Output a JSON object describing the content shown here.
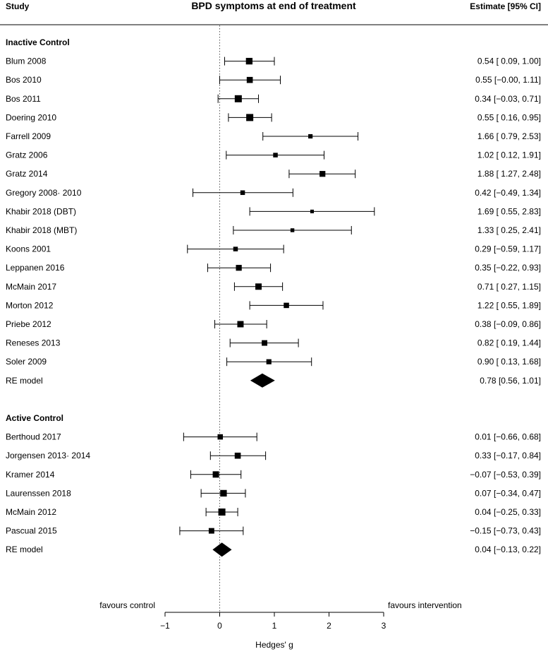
{
  "chart_data": {
    "type": "forest",
    "title": "BPD symptoms at end of treatment",
    "header_left": "Study",
    "header_right": "Estimate [95% CI]",
    "xlabel": "Hedges' g",
    "xlim": [
      -1,
      3
    ],
    "xticks": [
      -1,
      0,
      1,
      2,
      3
    ],
    "xtick_labels": [
      "−1",
      "0",
      "1",
      "2",
      "3"
    ],
    "left_annotation": "favours control",
    "right_annotation": "favours intervention",
    "groups": [
      {
        "name": "Inactive Control",
        "studies": [
          {
            "label": "Blum 2008",
            "est": 0.54,
            "lo": 0.09,
            "hi": 1.0,
            "weight": 0.9,
            "text": "0.54 [ 0.09, 1.00]"
          },
          {
            "label": "Bos 2010",
            "est": 0.55,
            "lo": 0.0,
            "hi": 1.11,
            "weight": 0.8,
            "text": "0.55 [−0.00, 1.11]"
          },
          {
            "label": "Bos 2011",
            "est": 0.34,
            "lo": -0.03,
            "hi": 0.71,
            "weight": 1.0,
            "text": "0.34 [−0.03, 0.71]"
          },
          {
            "label": "Doering 2010",
            "est": 0.55,
            "lo": 0.16,
            "hi": 0.95,
            "weight": 1.0,
            "text": "0.55 [ 0.16, 0.95]"
          },
          {
            "label": "Farrell 2009",
            "est": 1.66,
            "lo": 0.79,
            "hi": 2.53,
            "weight": 0.45,
            "text": "1.66 [ 0.79, 2.53]"
          },
          {
            "label": "Gratz 2006",
            "est": 1.02,
            "lo": 0.12,
            "hi": 1.91,
            "weight": 0.5,
            "text": "1.02 [ 0.12, 1.91]"
          },
          {
            "label": "Gratz 2014",
            "est": 1.88,
            "lo": 1.27,
            "hi": 2.48,
            "weight": 0.75,
            "text": "1.88 [ 1.27, 2.48]"
          },
          {
            "label": "Gregory 2008· 2010",
            "est": 0.42,
            "lo": -0.49,
            "hi": 1.34,
            "weight": 0.5,
            "text": "0.42 [−0.49, 1.34]"
          },
          {
            "label": "Khabir 2018 (DBT)",
            "est": 1.69,
            "lo": 0.55,
            "hi": 2.83,
            "weight": 0.3,
            "text": "1.69 [ 0.55, 2.83]"
          },
          {
            "label": "Khabir 2018 (MBT)",
            "est": 1.33,
            "lo": 0.25,
            "hi": 2.41,
            "weight": 0.35,
            "text": "1.33 [ 0.25, 2.41]"
          },
          {
            "label": "Koons 2001",
            "est": 0.29,
            "lo": -0.59,
            "hi": 1.17,
            "weight": 0.5,
            "text": "0.29 [−0.59, 1.17]"
          },
          {
            "label": "Leppanen 2016",
            "est": 0.35,
            "lo": -0.22,
            "hi": 0.93,
            "weight": 0.75,
            "text": "0.35 [−0.22, 0.93]"
          },
          {
            "label": "McMain 2017",
            "est": 0.71,
            "lo": 0.27,
            "hi": 1.15,
            "weight": 0.85,
            "text": "0.71 [ 0.27, 1.15]"
          },
          {
            "label": "Morton 2012",
            "est": 1.22,
            "lo": 0.55,
            "hi": 1.89,
            "weight": 0.65,
            "text": "1.22 [ 0.55, 1.89]"
          },
          {
            "label": "Priebe 2012",
            "est": 0.38,
            "lo": -0.09,
            "hi": 0.86,
            "weight": 0.85,
            "text": "0.38 [−0.09, 0.86]"
          },
          {
            "label": "Reneses 2013",
            "est": 0.82,
            "lo": 0.19,
            "hi": 1.44,
            "weight": 0.7,
            "text": "0.82 [ 0.19, 1.44]"
          },
          {
            "label": "Soler 2009",
            "est": 0.9,
            "lo": 0.13,
            "hi": 1.68,
            "weight": 0.6,
            "text": "0.90 [ 0.13, 1.68]"
          }
        ],
        "summary": {
          "label": "RE model",
          "est": 0.78,
          "lo": 0.56,
          "hi": 1.01,
          "text": "0.78 [0.56, 1.01]"
        }
      },
      {
        "name": "Active Control",
        "studies": [
          {
            "label": "Berthoud 2017",
            "est": 0.01,
            "lo": -0.66,
            "hi": 0.68,
            "weight": 0.65,
            "text": "0.01 [−0.66, 0.68]"
          },
          {
            "label": "Jorgensen 2013· 2014",
            "est": 0.33,
            "lo": -0.17,
            "hi": 0.84,
            "weight": 0.8,
            "text": "0.33 [−0.17, 0.84]"
          },
          {
            "label": "Kramer 2014",
            "est": -0.07,
            "lo": -0.53,
            "hi": 0.39,
            "weight": 0.85,
            "text": "−0.07 [−0.53, 0.39]"
          },
          {
            "label": "Laurenssen 2018",
            "est": 0.07,
            "lo": -0.34,
            "hi": 0.47,
            "weight": 0.9,
            "text": "0.07 [−0.34, 0.47]"
          },
          {
            "label": "McMain 2012",
            "est": 0.04,
            "lo": -0.25,
            "hi": 0.33,
            "weight": 1.0,
            "text": "0.04 [−0.25, 0.33]"
          },
          {
            "label": "Pascual 2015",
            "est": -0.15,
            "lo": -0.73,
            "hi": 0.43,
            "weight": 0.7,
            "text": "−0.15 [−0.73, 0.43]"
          }
        ],
        "summary": {
          "label": "RE model",
          "est": 0.04,
          "lo": -0.13,
          "hi": 0.22,
          "text": "0.04 [−0.13, 0.22]"
        }
      }
    ]
  }
}
